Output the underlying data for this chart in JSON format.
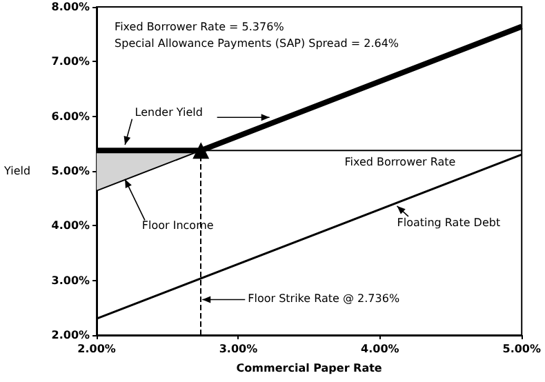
{
  "chart_data": {
    "type": "line",
    "xlabel": "Commercial Paper Rate",
    "ylabel": "Yield",
    "xlim": [
      2,
      5
    ],
    "ylim": [
      2,
      8
    ],
    "xticks": [
      {
        "value": 2,
        "label": "2.00%"
      },
      {
        "value": 3,
        "label": "3.00%"
      },
      {
        "value": 4,
        "label": "4.00%"
      },
      {
        "value": 5,
        "label": "5.00%"
      }
    ],
    "yticks": [
      {
        "value": 2,
        "label": "2.00%"
      },
      {
        "value": 3,
        "label": "3.00%"
      },
      {
        "value": 4,
        "label": "4.00%"
      },
      {
        "value": 5,
        "label": "5.00%"
      },
      {
        "value": 6,
        "label": "6.00%"
      },
      {
        "value": 7,
        "label": "7.00%"
      },
      {
        "value": 8,
        "label": "8.00%"
      }
    ],
    "grid": false,
    "legend": false,
    "marker": "none",
    "line_style": "solid",
    "annotations": [
      "Fixed Borrower Rate = 5.376%",
      "Special Allowance Payments (SAP) Spread = 2.64%"
    ],
    "ref_lines": [
      {
        "axis": "x",
        "value": 2.736,
        "label": "Floor Strike Rate @ 2.736%",
        "line_style": "dashed",
        "color": "#000000"
      }
    ],
    "series": [
      {
        "name": "Lender Yield",
        "color": "#000000",
        "x": [
          2,
          2.736,
          5
        ],
        "values": [
          5.376,
          5.376,
          7.64
        ]
      },
      {
        "name": "Fixed Borrower Rate",
        "color": "#000000",
        "x": [
          2,
          5
        ],
        "values": [
          5.376,
          5.376
        ]
      },
      {
        "name": "Floor Income",
        "color": "#000000",
        "x": [
          2,
          2.736
        ],
        "values": [
          4.64,
          5.376
        ],
        "lower": [
          4.64,
          5.376
        ],
        "upper": [
          5.376,
          5.376
        ]
      },
      {
        "name": "Floating Rate Debt",
        "color": "#000000",
        "x": [
          2,
          5
        ],
        "values": [
          2.3,
          5.3
        ]
      }
    ]
  }
}
